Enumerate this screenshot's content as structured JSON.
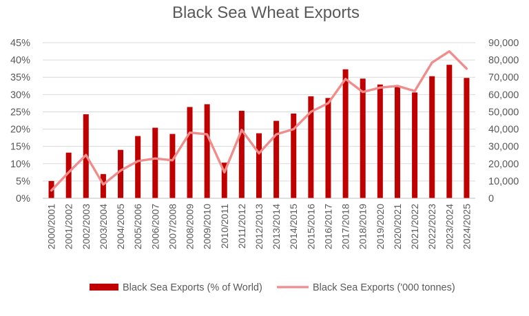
{
  "chart_data": {
    "type": "bar",
    "title": "Black Sea Wheat Exports",
    "categories": [
      "2000/2001",
      "2001/2002",
      "2002/2003",
      "2003/2004",
      "2004/2005",
      "2005/2006",
      "2006/2007",
      "2007/2008",
      "2008/2009",
      "2009/2010",
      "2010/2011",
      "2011/2012",
      "2012/2013",
      "2013/2014",
      "2014/2015",
      "2015/2016",
      "2016/2017",
      "2017/2018",
      "2018/2019",
      "2019/2020",
      "2020/2021",
      "2021/2022",
      "2022/2023",
      "2023/2024",
      "2024/2025"
    ],
    "series": [
      {
        "name": "Black Sea Exports (% of World)",
        "type": "bar",
        "axis": "left",
        "color": "#c00000",
        "values": [
          5.0,
          13.2,
          24.3,
          7.0,
          14.0,
          18.0,
          20.4,
          18.6,
          26.4,
          27.2,
          10.3,
          25.3,
          18.8,
          22.4,
          24.5,
          29.5,
          29.0,
          37.3,
          34.6,
          32.9,
          32.4,
          30.6,
          35.3,
          38.6,
          34.8
        ]
      },
      {
        "name": "Black Sea Exports ('000 tonnes)",
        "type": "line",
        "axis": "right",
        "color": "#f08c8c",
        "values": [
          4500,
          15000,
          25000,
          8000,
          16000,
          21500,
          23000,
          22000,
          38000,
          37000,
          15000,
          39500,
          26000,
          37000,
          40000,
          50000,
          55000,
          69000,
          61500,
          64000,
          65000,
          62000,
          78500,
          85000,
          75000
        ]
      }
    ],
    "y_left": {
      "min": 0,
      "max": 45,
      "step": 5,
      "ticks": [
        "0%",
        "5%",
        "10%",
        "15%",
        "20%",
        "25%",
        "30%",
        "35%",
        "40%",
        "45%"
      ]
    },
    "y_right": {
      "min": 0,
      "max": 90000,
      "step": 10000,
      "ticks": [
        "0",
        "10,000",
        "20,000",
        "30,000",
        "40,000",
        "50,000",
        "60,000",
        "70,000",
        "80,000",
        "90,000"
      ]
    },
    "grid": true,
    "legend_position": "bottom"
  }
}
